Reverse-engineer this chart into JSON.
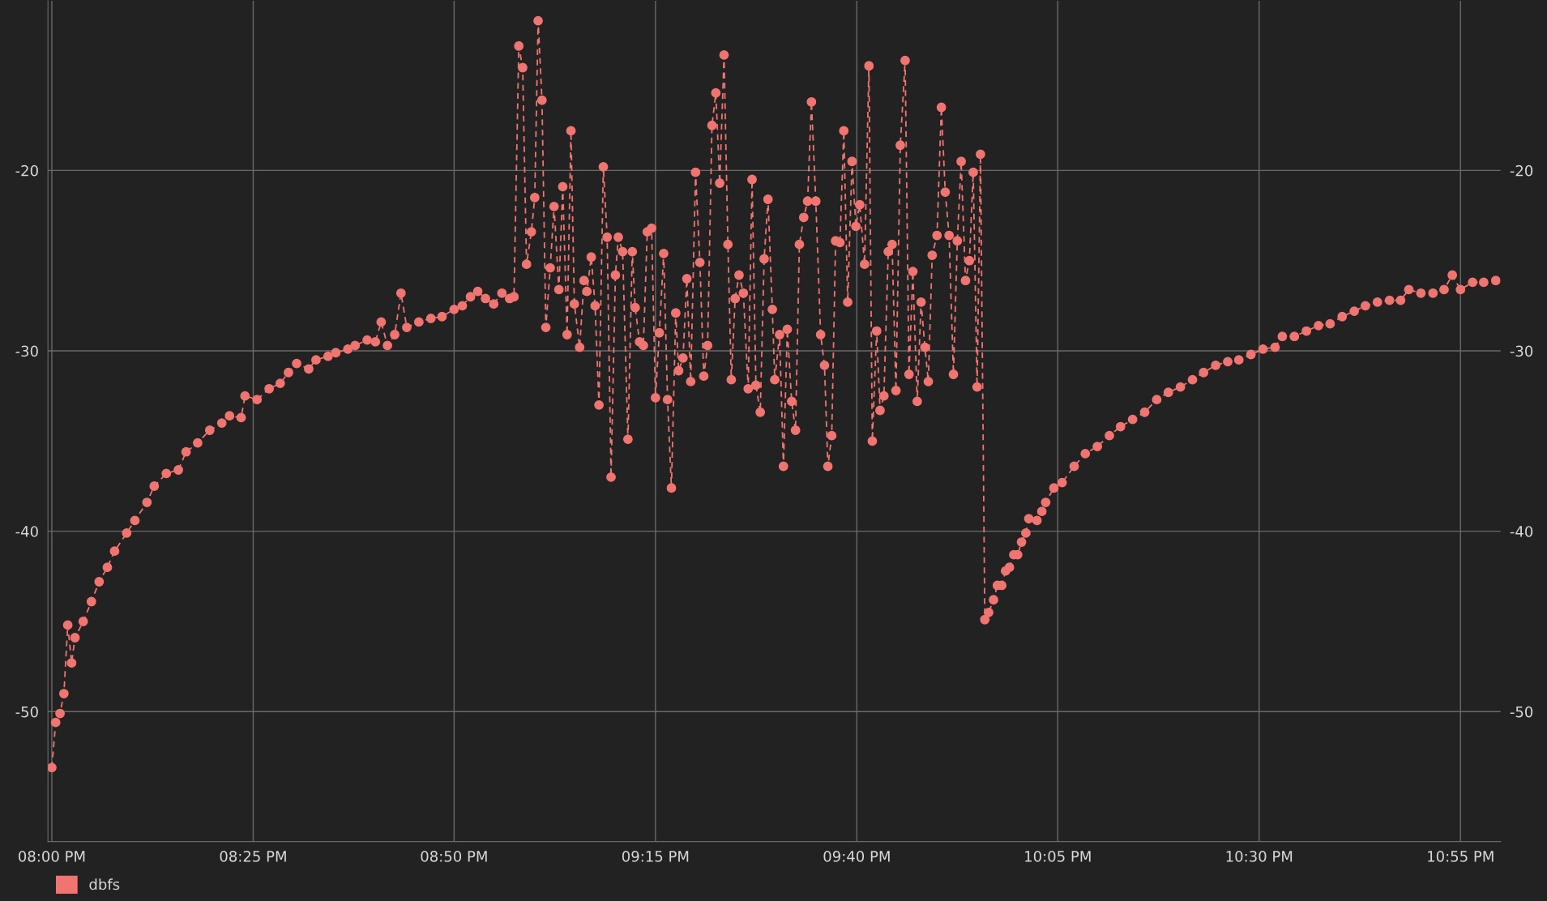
{
  "chart_data": {
    "type": "line",
    "marker": "circle",
    "line_style": "dashed",
    "grid": true,
    "legend": "bottom",
    "xlim": [
      19.992,
      23.0
    ],
    "xticks": [
      {
        "value": 20,
        "label": "08:00 PM"
      },
      {
        "value": 20.417,
        "label": "08:25 PM"
      },
      {
        "value": 20.833,
        "label": "08:50 PM"
      },
      {
        "value": 21.25,
        "label": "09:15 PM"
      },
      {
        "value": 21.667,
        "label": "09:40 PM"
      },
      {
        "value": 22.083,
        "label": "10:05 PM"
      },
      {
        "value": 22.5,
        "label": "10:30 PM"
      },
      {
        "value": 22.917,
        "label": "10:55 PM"
      }
    ],
    "ylim": [
      -57.2,
      -10.6
    ],
    "yticks": [
      -50,
      -40,
      -30,
      -20
    ],
    "y2lim": [
      -57.2,
      -10.6
    ],
    "y2ticks": [
      -50,
      -40,
      -30,
      -20
    ],
    "series": [
      {
        "name": "dbfs",
        "color": "#f07470",
        "x": [
          20.0,
          20.008,
          20.017,
          20.025,
          20.033,
          20.041,
          20.048,
          20.065,
          20.082,
          20.098,
          20.115,
          20.13,
          20.155,
          20.172,
          20.197,
          20.212,
          20.237,
          20.262,
          20.278,
          20.302,
          20.327,
          20.352,
          20.368,
          20.392,
          20.4,
          20.425,
          20.45,
          20.473,
          20.49,
          20.507,
          20.532,
          20.547,
          20.572,
          20.588,
          20.613,
          20.628,
          20.653,
          20.67,
          20.682,
          20.695,
          20.71,
          20.723,
          20.735,
          20.76,
          20.785,
          20.808,
          20.833,
          20.85,
          20.867,
          20.882,
          20.898,
          20.915,
          20.932,
          20.948,
          20.957,
          20.967,
          20.975,
          20.983,
          20.993,
          21.0,
          21.007,
          21.015,
          21.023,
          21.032,
          21.04,
          21.05,
          21.058,
          21.067,
          21.075,
          21.082,
          21.093,
          21.102,
          21.108,
          21.117,
          21.125,
          21.133,
          21.142,
          21.15,
          21.158,
          21.167,
          21.173,
          21.182,
          21.193,
          21.202,
          21.208,
          21.217,
          21.225,
          21.233,
          21.242,
          21.25,
          21.258,
          21.267,
          21.275,
          21.283,
          21.292,
          21.298,
          21.307,
          21.315,
          21.323,
          21.333,
          21.342,
          21.35,
          21.358,
          21.367,
          21.375,
          21.383,
          21.392,
          21.4,
          21.407,
          21.415,
          21.423,
          21.432,
          21.442,
          21.45,
          21.458,
          21.467,
          21.475,
          21.483,
          21.492,
          21.497,
          21.507,
          21.515,
          21.523,
          21.532,
          21.54,
          21.548,
          21.557,
          21.565,
          21.573,
          21.582,
          21.592,
          21.6,
          21.607,
          21.615,
          21.623,
          21.632,
          21.64,
          21.648,
          21.657,
          21.665,
          21.673,
          21.683,
          21.692,
          21.699,
          21.708,
          21.715,
          21.723,
          21.732,
          21.74,
          21.748,
          21.757,
          21.767,
          21.775,
          21.783,
          21.792,
          21.8,
          21.808,
          21.815,
          21.823,
          21.833,
          21.842,
          21.85,
          21.858,
          21.867,
          21.875,
          21.883,
          21.892,
          21.9,
          21.908,
          21.916,
          21.923,
          21.932,
          21.94,
          21.95,
          21.958,
          21.967,
          21.975,
          21.983,
          21.992,
          22.0,
          22.008,
          22.017,
          22.023,
          22.04,
          22.05,
          22.058,
          22.075,
          22.092,
          22.117,
          22.14,
          22.165,
          22.19,
          22.213,
          22.238,
          22.263,
          22.288,
          22.312,
          22.337,
          22.362,
          22.385,
          22.41,
          22.435,
          22.458,
          22.483,
          22.508,
          22.533,
          22.548,
          22.573,
          22.598,
          22.623,
          22.647,
          22.672,
          22.697,
          22.72,
          22.745,
          22.77,
          22.793,
          22.81,
          22.835,
          22.86,
          22.883,
          22.9,
          22.917,
          22.942,
          22.965,
          22.99
        ],
        "values": [
          -53.1,
          -50.6,
          -50.1,
          -49.0,
          -45.2,
          -47.3,
          -45.9,
          -45.0,
          -43.9,
          -42.8,
          -42.0,
          -41.1,
          -40.1,
          -39.4,
          -38.4,
          -37.5,
          -36.8,
          -36.6,
          -35.6,
          -35.1,
          -34.4,
          -34.0,
          -33.6,
          -33.7,
          -32.5,
          -32.7,
          -32.1,
          -31.8,
          -31.2,
          -30.7,
          -31.0,
          -30.5,
          -30.3,
          -30.1,
          -29.9,
          -29.7,
          -29.4,
          -29.5,
          -28.4,
          -29.7,
          -29.1,
          -26.8,
          -28.7,
          -28.4,
          -28.2,
          -28.1,
          -27.7,
          -27.5,
          -27.0,
          -26.7,
          -27.1,
          -27.4,
          -26.8,
          -27.1,
          -27.0,
          -13.1,
          -14.3,
          -25.2,
          -23.4,
          -21.5,
          -11.7,
          -16.1,
          -28.7,
          -25.4,
          -22.0,
          -26.6,
          -20.9,
          -29.1,
          -17.8,
          -27.4,
          -29.8,
          -26.1,
          -26.7,
          -24.8,
          -27.5,
          -33.0,
          -19.8,
          -23.7,
          -37.0,
          -25.8,
          -23.7,
          -24.5,
          -34.9,
          -24.5,
          -27.6,
          -29.5,
          -29.7,
          -23.4,
          -23.2,
          -32.6,
          -29.0,
          -24.6,
          -32.7,
          -37.6,
          -27.9,
          -31.1,
          -30.4,
          -26.0,
          -31.7,
          -20.1,
          -25.1,
          -31.4,
          -29.7,
          -17.5,
          -15.7,
          -20.7,
          -13.6,
          -24.1,
          -31.6,
          -27.1,
          -25.8,
          -26.8,
          -32.1,
          -20.5,
          -31.9,
          -33.4,
          -24.9,
          -21.6,
          -27.7,
          -31.6,
          -29.1,
          -36.4,
          -28.8,
          -32.8,
          -34.4,
          -24.1,
          -22.6,
          -21.7,
          -16.2,
          -21.7,
          -29.1,
          -30.8,
          -36.4,
          -34.7,
          -23.9,
          -24.0,
          -17.8,
          -27.3,
          -19.5,
          -23.1,
          -21.9,
          -25.2,
          -14.2,
          -35.0,
          -28.9,
          -33.3,
          -32.5,
          -24.5,
          -24.1,
          -32.2,
          -18.6,
          -13.9,
          -31.3,
          -25.6,
          -32.8,
          -27.3,
          -29.8,
          -31.7,
          -24.7,
          -23.6,
          -16.5,
          -21.2,
          -23.6,
          -31.3,
          -23.9,
          -19.5,
          -26.1,
          -25.0,
          -20.1,
          -32.0,
          -19.1,
          -44.9,
          -44.5,
          -43.8,
          -43.0,
          -43.0,
          -42.2,
          -42.0,
          -41.3,
          -41.3,
          -40.6,
          -40.1,
          -39.3,
          -39.4,
          -38.9,
          -38.4,
          -37.6,
          -37.3,
          -36.4,
          -35.7,
          -35.3,
          -34.7,
          -34.2,
          -33.8,
          -33.4,
          -32.7,
          -32.3,
          -32.0,
          -31.6,
          -31.2,
          -30.8,
          -30.6,
          -30.5,
          -30.2,
          -29.9,
          -29.8,
          -29.2,
          -29.2,
          -28.9,
          -28.6,
          -28.5,
          -28.1,
          -27.8,
          -27.5,
          -27.3,
          -27.2,
          -27.2,
          -26.6,
          -26.8,
          -26.8,
          -26.6,
          -25.8,
          -26.6,
          -26.2,
          -26.2,
          -26.1
        ]
      }
    ]
  }
}
